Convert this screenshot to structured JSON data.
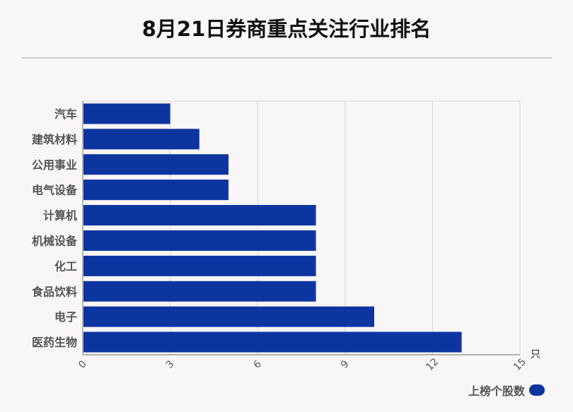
{
  "title": "8月21日券商重点关注行业排名",
  "colors": {
    "bar": "#0d35a0",
    "background": "#f9f6f8",
    "grid": "#d6d6d6"
  },
  "chart_data": {
    "type": "bar",
    "orientation": "horizontal",
    "categories": [
      "汽车",
      "建筑材料",
      "公用事业",
      "电气设备",
      "计算机",
      "机械设备",
      "化工",
      "食品饮料",
      "电子",
      "医药生物"
    ],
    "series": [
      {
        "name": "上榜个股数",
        "values": [
          3,
          4,
          5,
          5,
          8,
          8,
          8,
          8,
          10,
          13
        ]
      }
    ],
    "xticks": [
      "0",
      "3",
      "6",
      "9",
      "12",
      "15"
    ],
    "xlim": [
      0,
      15
    ],
    "xunit": "只",
    "grid": true,
    "legend_position": "bottom-right"
  }
}
